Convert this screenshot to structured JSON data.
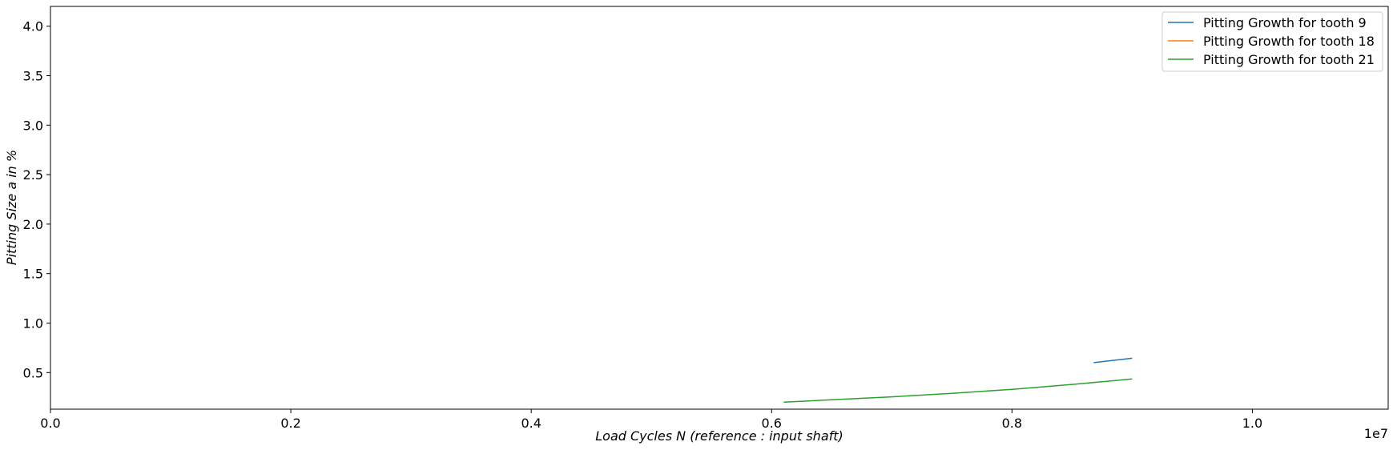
{
  "chart_data": {
    "type": "line",
    "title": "",
    "xlabel": "Load Cycles N (reference :  input shaft)",
    "ylabel": "Pitting Size a in %",
    "x_offset_label": "1e7",
    "x_scale": 10000000,
    "xlim": [
      0,
      11130000
    ],
    "ylim": [
      0.13,
      4.2
    ],
    "x_ticks": [
      0,
      2000000,
      4000000,
      6000000,
      8000000,
      10000000
    ],
    "x_tick_labels": [
      "0.0",
      "0.2",
      "0.4",
      "0.6",
      "0.8",
      "1.0"
    ],
    "y_ticks": [
      0.5,
      1.0,
      1.5,
      2.0,
      2.5,
      3.0,
      3.5,
      4.0
    ],
    "y_tick_labels": [
      "0.5",
      "1.0",
      "1.5",
      "2.0",
      "2.5",
      "3.0",
      "3.5",
      "4.0"
    ],
    "grid": false,
    "legend_position": "top-right",
    "series": [
      {
        "name": "Pitting Growth for tooth 9",
        "color": "#1f77b4",
        "x": [
          8680000,
          9000000
        ],
        "y": [
          0.6,
          0.645
        ]
      },
      {
        "name": "Pitting Growth for tooth 18",
        "color": "#ff7f0e",
        "x": [],
        "y": []
      },
      {
        "name": "Pitting Growth for tooth 21",
        "color": "#2ca02c",
        "x": [
          6100000,
          6500000,
          7000000,
          7500000,
          8000000,
          8500000,
          9000000
        ],
        "y": [
          0.2,
          0.225,
          0.255,
          0.29,
          0.33,
          0.38,
          0.435
        ]
      }
    ]
  }
}
